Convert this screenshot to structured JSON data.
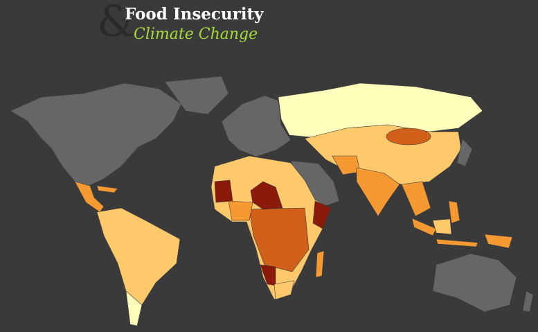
{
  "header": {
    "symbol": "&",
    "title": "Food Insecurity",
    "subtitle": "Climate Change"
  }
}
